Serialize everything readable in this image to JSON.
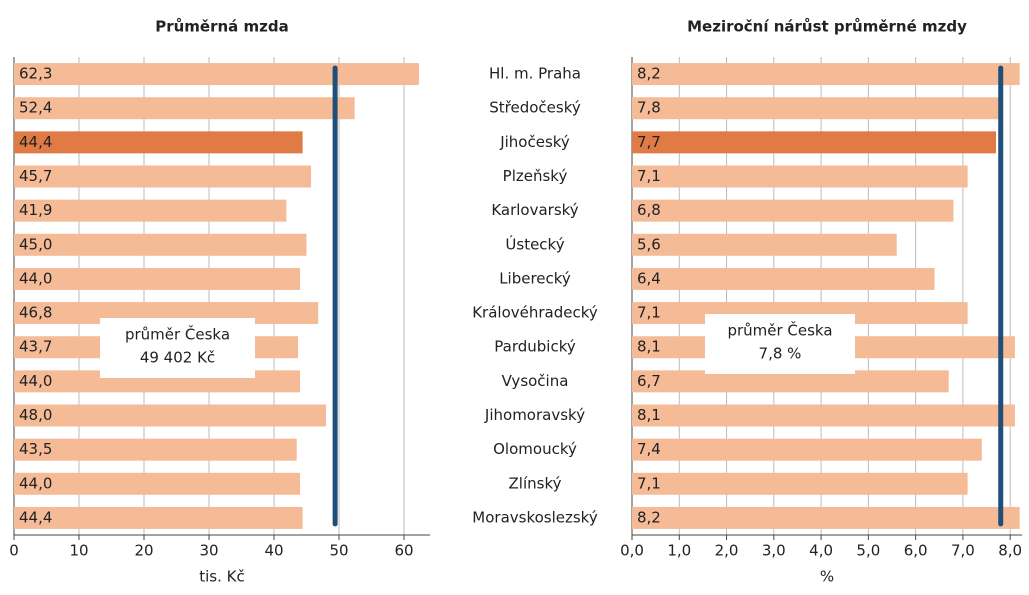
{
  "chart_data": [
    {
      "type": "bar",
      "orientation": "horizontal",
      "title": "Průměrná mzda",
      "categories": [
        "Hl. m. Praha",
        "Středočeský",
        "Jihočeský",
        "Plzeňský",
        "Karlovarský",
        "Ústecký",
        "Liberecký",
        "Královéhradecký",
        "Pardubický",
        "Vysočina",
        "Jihomoravský",
        "Olomoucký",
        "Zlínský",
        "Moravskoslezský"
      ],
      "values": [
        62.3,
        52.4,
        44.4,
        45.7,
        41.9,
        45.0,
        44.0,
        46.8,
        43.7,
        44.0,
        48.0,
        43.5,
        44.0,
        44.4
      ],
      "value_labels": [
        "62,3",
        "52,4",
        "44,4",
        "45,7",
        "41,9",
        "45,0",
        "44,0",
        "46,8",
        "43,7",
        "44,0",
        "48,0",
        "43,5",
        "44,0",
        "44,4"
      ],
      "color": "#f5bb97",
      "highlight": {
        "index": 2,
        "color": "#e07b45"
      },
      "xlabel": "tis. Kč",
      "xlim": [
        0,
        64
      ],
      "xticks": [
        0,
        10,
        20,
        30,
        40,
        50,
        60
      ],
      "grid": true,
      "reference_line": {
        "value": 49.402,
        "color": "#1f4e79"
      },
      "annotation": [
        "průměr Česka",
        "49 402 Kč"
      ]
    },
    {
      "type": "bar",
      "orientation": "horizontal",
      "title": "Meziroční nárůst průměrné mzdy",
      "values": [
        8.2,
        7.8,
        7.7,
        7.1,
        6.8,
        5.6,
        6.4,
        7.1,
        8.1,
        6.7,
        8.1,
        7.4,
        7.1,
        8.2
      ],
      "value_labels": [
        "8,2",
        "7,8",
        "7,7",
        "7,1",
        "6,8",
        "5,6",
        "6,4",
        "7,1",
        "8,1",
        "6,7",
        "8,1",
        "7,4",
        "7,1",
        "8,2"
      ],
      "color": "#f5bb97",
      "highlight": {
        "index": 2,
        "color": "#e07b45"
      },
      "xlabel": "%",
      "xlim": [
        0,
        8.25
      ],
      "xticks": [
        {
          "value": 0,
          "label": "0,0"
        },
        {
          "value": 1,
          "label": "1,0"
        },
        {
          "value": 2,
          "label": "2,0"
        },
        {
          "value": 3,
          "label": "3,0"
        },
        {
          "value": 4,
          "label": "4,0"
        },
        {
          "value": 5,
          "label": "5,0"
        },
        {
          "value": 6,
          "label": "6,0"
        },
        {
          "value": 7,
          "label": "7,0"
        },
        {
          "value": 8,
          "label": "8,0"
        }
      ],
      "grid": true,
      "reference_line": {
        "value": 7.8,
        "color": "#1f4e79"
      },
      "annotation": [
        "průměr Česka",
        "7,8 %"
      ]
    }
  ]
}
